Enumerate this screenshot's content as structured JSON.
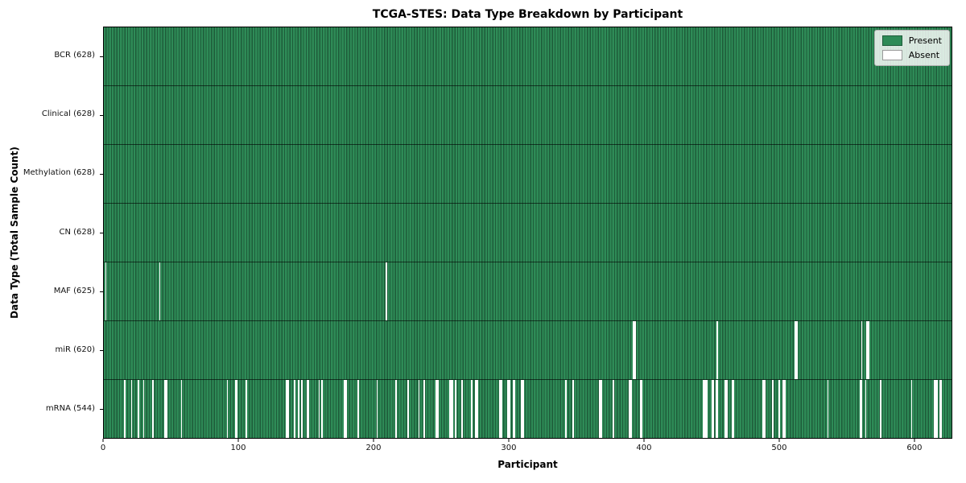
{
  "figure": {
    "title": "TCGA-STES: Data Type Breakdown by Participant",
    "xlabel": "Participant",
    "ylabel": "Data Type (Total Sample Count)"
  },
  "legend": {
    "items": [
      {
        "name": "present",
        "label": "Present",
        "color": "#2e8b57"
      },
      {
        "name": "absent",
        "label": "Absent",
        "color": "#ffffff"
      }
    ],
    "position": "upper-right"
  },
  "chart_data": {
    "type": "heatmap",
    "title": "TCGA-STES: Data Type Breakdown by Participant",
    "xlabel": "Participant",
    "ylabel": "Data Type (Total Sample Count)",
    "x_range": [
      0,
      628
    ],
    "x_ticks": [
      0,
      100,
      200,
      300,
      400,
      500,
      600
    ],
    "n_participants": 628,
    "legend": [
      "Present",
      "Absent"
    ],
    "colors": {
      "present": "#2e8b57",
      "present_edge": "#1e5c3a",
      "absent": "#ffffff"
    },
    "grid": "row-separators-only",
    "rows": [
      {
        "name": "BCR",
        "label": "BCR (628)",
        "total": 628,
        "absent": []
      },
      {
        "name": "Clinical",
        "label": "Clinical (628)",
        "total": 628,
        "absent": []
      },
      {
        "name": "Methylation",
        "label": "Methylation (628)",
        "total": 628,
        "absent": []
      },
      {
        "name": "CN",
        "label": "CN (628)",
        "total": 628,
        "absent": []
      },
      {
        "name": "MAF",
        "label": "MAF (625)",
        "total": 625,
        "absent": [
          1,
          41,
          209
        ]
      },
      {
        "name": "miR",
        "label": "miR (620)",
        "total": 620,
        "absent": [
          392,
          393,
          454,
          512,
          513,
          561,
          565,
          566
        ]
      },
      {
        "name": "mRNA",
        "label": "mRNA (544)",
        "total": 544,
        "absent": [
          15,
          20,
          25,
          29,
          36,
          45,
          46,
          57,
          91,
          97,
          98,
          105,
          135,
          136,
          141,
          144,
          146,
          150,
          151,
          159,
          161,
          178,
          179,
          188,
          202,
          216,
          225,
          233,
          237,
          246,
          247,
          256,
          257,
          258,
          260,
          265,
          272,
          275,
          276,
          293,
          294,
          299,
          300,
          303,
          304,
          309,
          310,
          342,
          347,
          367,
          368,
          377,
          389,
          390,
          397,
          398,
          444,
          445,
          446,
          450,
          451,
          453,
          454,
          460,
          461,
          465,
          466,
          488,
          489,
          495,
          500,
          503,
          504,
          536,
          560,
          561,
          564,
          575,
          598,
          615,
          616,
          617,
          619,
          620
        ]
      }
    ]
  },
  "layout_notes": {
    "plot_border_color": "#000000"
  }
}
